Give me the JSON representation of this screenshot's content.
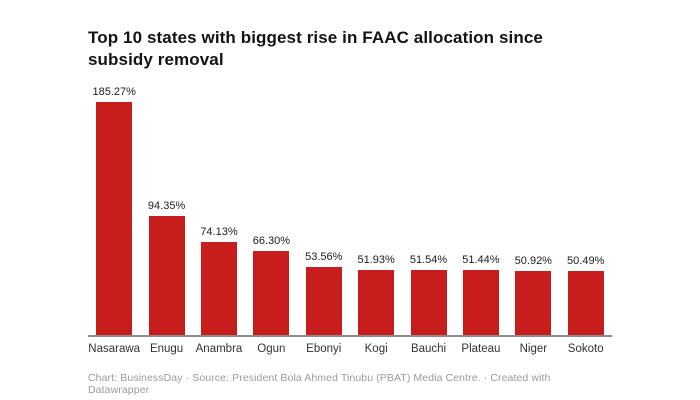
{
  "header": {
    "title": "Top 10 states with biggest rise in FAAC allocation since subsidy removal"
  },
  "chart_data": {
    "type": "bar",
    "title": "Top 10 states with biggest rise in FAAC allocation since subsidy removal",
    "categories": [
      "Nasarawa",
      "Enugu",
      "Anambra",
      "Ogun",
      "Ebonyi",
      "Kogi",
      "Bauchi",
      "Plateau",
      "Niger",
      "Sokoto"
    ],
    "values": [
      185.27,
      94.35,
      74.13,
      66.3,
      53.56,
      51.93,
      51.54,
      51.44,
      50.92,
      50.49
    ],
    "value_labels": [
      "185.27%",
      "94.35%",
      "74.13%",
      "66.30%",
      "53.56%",
      "51.93%",
      "51.54%",
      "51.44%",
      "50.92%",
      "50.49%"
    ],
    "unit": "%",
    "xlabel": "",
    "ylabel": "",
    "ylim": [
      0,
      185.27
    ],
    "grid": false,
    "legend": false,
    "bar_color": "#c71e1d",
    "axis_color": "#8c8c8c"
  },
  "footer": {
    "text": "Chart: BusinessDay · Source: President Bola Ahmed Tinubu (PBAT) Media Centre. · Created with Datawrapper"
  }
}
